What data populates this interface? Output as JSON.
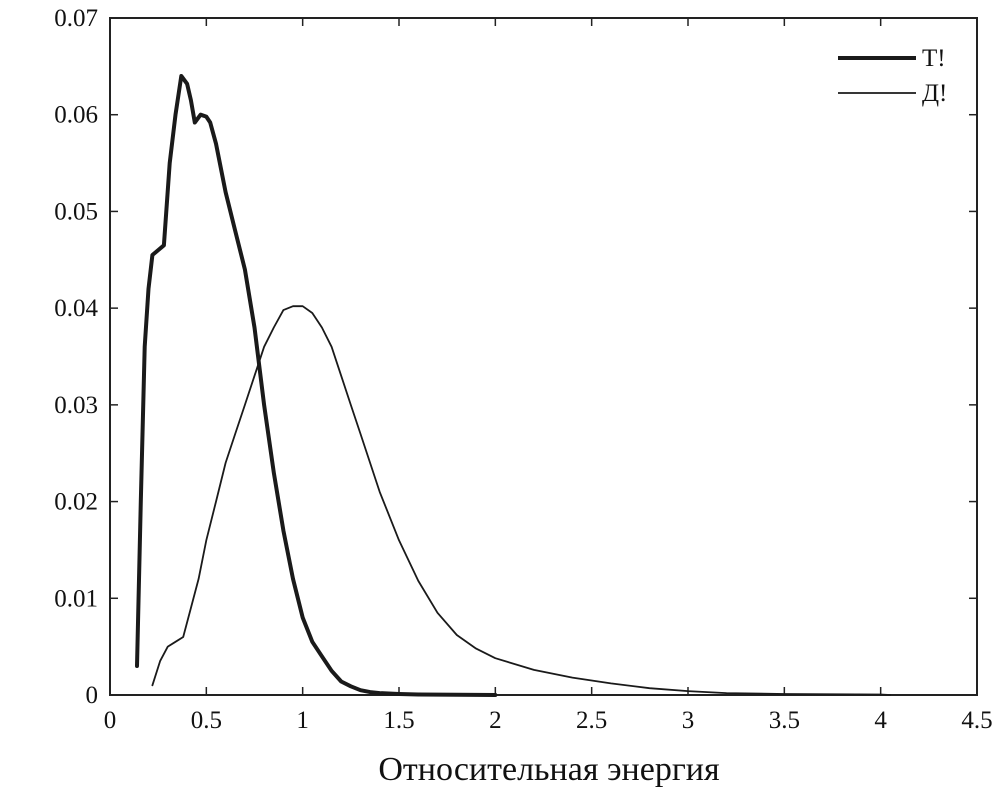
{
  "chart_data": {
    "type": "line",
    "title": "",
    "xlabel": "Относительная энергия",
    "ylabel": "",
    "xlim": [
      0,
      4.5
    ],
    "ylim": [
      0,
      0.07
    ],
    "xticks": [
      "0",
      "0.5",
      "1",
      "1.5",
      "2",
      "2.5",
      "3",
      "3.5",
      "4",
      "4.5"
    ],
    "yticks": [
      "0",
      "0.01",
      "0.02",
      "0.03",
      "0.04",
      "0.05",
      "0.06",
      "0.07"
    ],
    "grid": false,
    "legend_position": "top-right",
    "series": [
      {
        "name": "Т!",
        "style": "thick",
        "color": "#1a1a1a",
        "x": [
          0.14,
          0.16,
          0.18,
          0.2,
          0.22,
          0.25,
          0.28,
          0.31,
          0.34,
          0.37,
          0.4,
          0.42,
          0.44,
          0.47,
          0.5,
          0.52,
          0.55,
          0.6,
          0.65,
          0.7,
          0.75,
          0.8,
          0.85,
          0.9,
          0.95,
          1.0,
          1.05,
          1.1,
          1.15,
          1.2,
          1.25,
          1.3,
          1.35,
          1.4,
          1.5,
          1.6,
          1.8,
          2.0
        ],
        "y": [
          0.003,
          0.02,
          0.036,
          0.042,
          0.0455,
          0.046,
          0.0465,
          0.055,
          0.06,
          0.064,
          0.0632,
          0.0615,
          0.0592,
          0.06,
          0.0598,
          0.0592,
          0.057,
          0.052,
          0.048,
          0.044,
          0.038,
          0.03,
          0.023,
          0.017,
          0.012,
          0.008,
          0.0055,
          0.004,
          0.0025,
          0.0014,
          0.0009,
          0.0005,
          0.0003,
          0.0002,
          0.0001,
          5e-05,
          2e-05,
          0.0
        ]
      },
      {
        "name": "Д!",
        "style": "thin",
        "color": "#1a1a1a",
        "x": [
          0.22,
          0.26,
          0.3,
          0.34,
          0.38,
          0.42,
          0.46,
          0.5,
          0.55,
          0.6,
          0.65,
          0.7,
          0.75,
          0.8,
          0.85,
          0.9,
          0.95,
          1.0,
          1.05,
          1.1,
          1.15,
          1.2,
          1.25,
          1.3,
          1.4,
          1.5,
          1.6,
          1.7,
          1.8,
          1.9,
          2.0,
          2.2,
          2.4,
          2.6,
          2.8,
          3.0,
          3.2,
          3.5,
          4.0,
          4.05
        ],
        "y": [
          0.001,
          0.0035,
          0.005,
          0.0055,
          0.006,
          0.009,
          0.012,
          0.016,
          0.02,
          0.024,
          0.027,
          0.03,
          0.033,
          0.036,
          0.038,
          0.0398,
          0.0402,
          0.0402,
          0.0395,
          0.038,
          0.036,
          0.033,
          0.03,
          0.027,
          0.021,
          0.016,
          0.0118,
          0.0085,
          0.0062,
          0.0048,
          0.0038,
          0.0026,
          0.0018,
          0.0012,
          0.0007,
          0.0004,
          0.0002,
          0.0001,
          5e-05,
          0.0
        ]
      }
    ]
  }
}
